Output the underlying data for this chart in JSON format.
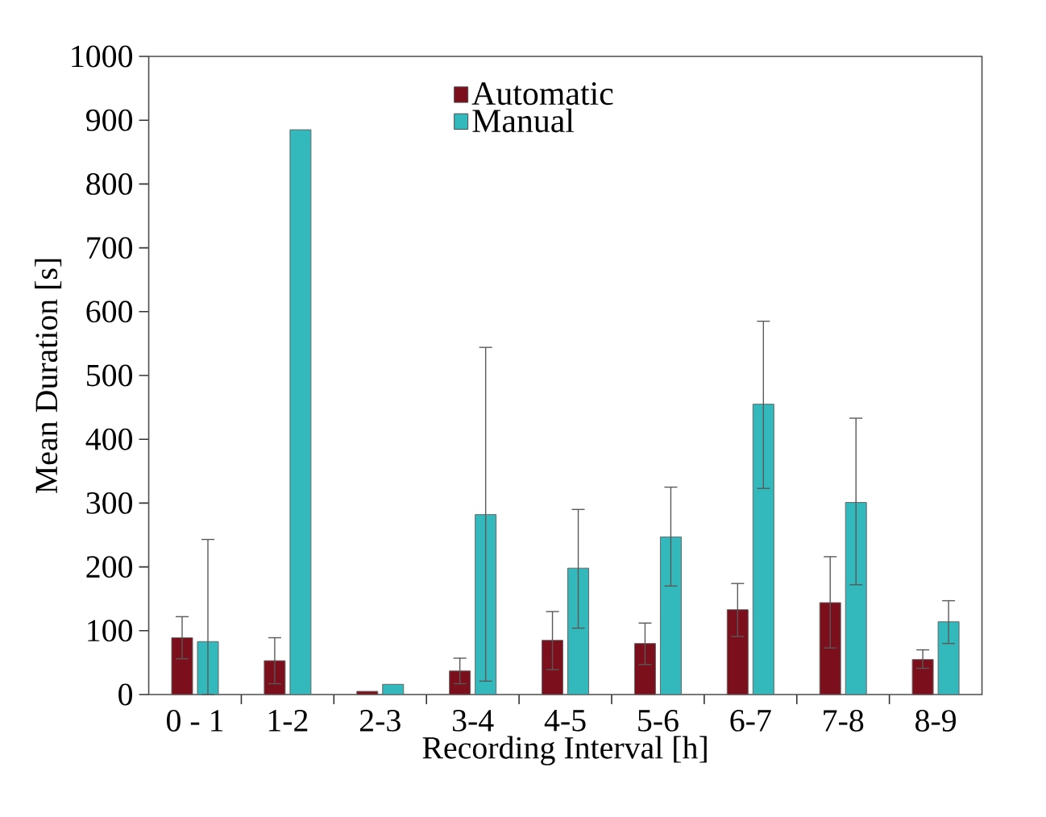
{
  "chart_data": {
    "type": "bar",
    "xlabel": "Recording Interval [h]",
    "ylabel": "Mean Duration [s]",
    "categories": [
      "0 - 1",
      "1-2",
      "2-3",
      "3-4",
      "4-5",
      "5-6",
      "6-7",
      "7-8",
      "8-9"
    ],
    "series": [
      {
        "name": "Automatic",
        "color": "#7b0f1b",
        "values": [
          89,
          53,
          5,
          37,
          85,
          80,
          133,
          144,
          55
        ],
        "errors": [
          [
            56,
            122
          ],
          [
            17,
            89
          ],
          null,
          [
            17,
            57
          ],
          [
            39,
            130
          ],
          [
            47,
            112
          ],
          [
            91,
            174
          ],
          [
            73,
            216
          ],
          [
            41,
            70
          ]
        ]
      },
      {
        "name": "Manual",
        "color": "#33b8bc",
        "values": [
          83,
          885,
          16,
          282,
          198,
          247,
          455,
          301,
          114
        ],
        "errors": [
          [
            0,
            243
          ],
          null,
          null,
          [
            21,
            544
          ],
          [
            104,
            290
          ],
          [
            170,
            325
          ],
          [
            323,
            585
          ],
          [
            172,
            433
          ],
          [
            80,
            147
          ]
        ]
      }
    ],
    "ylim": [
      0,
      1000
    ],
    "yticks": [
      0,
      100,
      200,
      300,
      400,
      500,
      600,
      700,
      800,
      900,
      1000
    ],
    "grid": false,
    "legend": "top"
  }
}
